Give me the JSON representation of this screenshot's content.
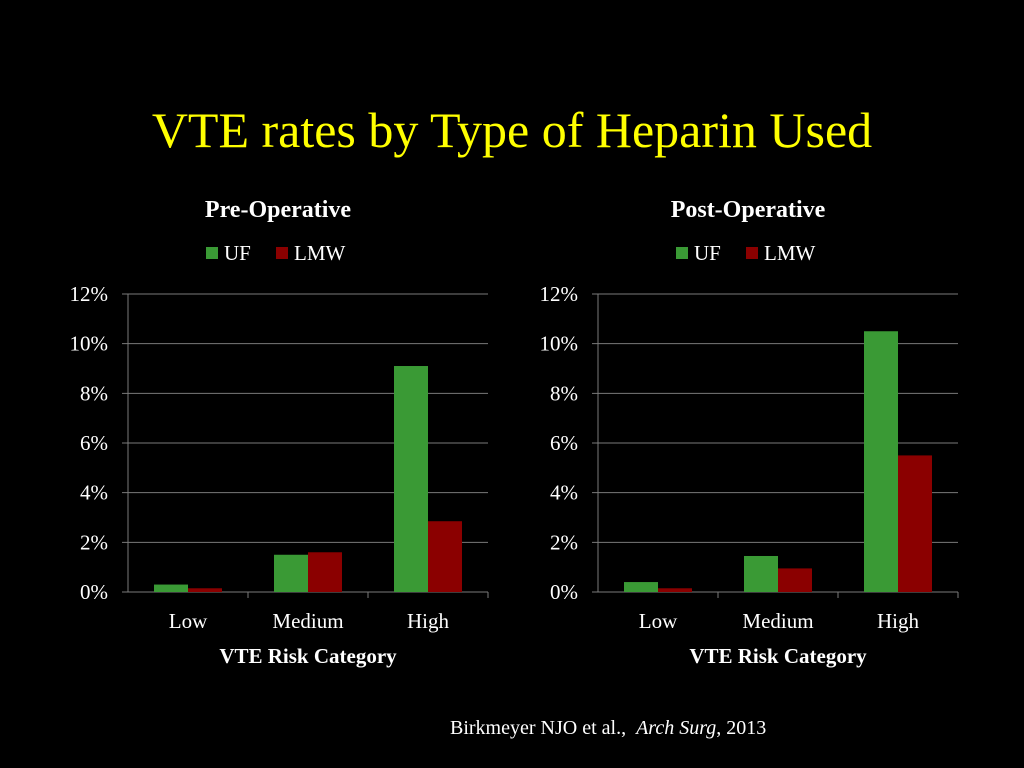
{
  "slide": {
    "title": "VTE rates by Type of Heparin Used",
    "title_color": "#ffff00",
    "background": "#000000"
  },
  "colors": {
    "UF": "#3a9a35",
    "LMW": "#8b0000"
  },
  "citation": {
    "authors": "Birkmeyer NJO et al.,",
    "journal": "Arch Surg",
    "year": ", 2013"
  },
  "chart_data": [
    {
      "type": "bar",
      "title": "Pre-Operative",
      "categories": [
        "Low",
        "Medium",
        "High"
      ],
      "series": [
        {
          "name": "UF",
          "values": [
            0.3,
            1.5,
            9.1
          ]
        },
        {
          "name": "LMW",
          "values": [
            0.15,
            1.6,
            2.85
          ]
        }
      ],
      "xlabel": "VTE Risk Category",
      "ylabel": "",
      "ylim": [
        0,
        12
      ],
      "yticks": [
        "0%",
        "2%",
        "4%",
        "6%",
        "8%",
        "10%",
        "12%"
      ],
      "grid": true,
      "legend": "top"
    },
    {
      "type": "bar",
      "title": "Post-Operative",
      "categories": [
        "Low",
        "Medium",
        "High"
      ],
      "series": [
        {
          "name": "UF",
          "values": [
            0.4,
            1.45,
            10.5
          ]
        },
        {
          "name": "LMW",
          "values": [
            0.15,
            0.95,
            5.5
          ]
        }
      ],
      "xlabel": "VTE Risk Category",
      "ylabel": "",
      "ylim": [
        0,
        12
      ],
      "yticks": [
        "0%",
        "2%",
        "4%",
        "6%",
        "8%",
        "10%",
        "12%"
      ],
      "grid": true,
      "legend": "top"
    }
  ]
}
